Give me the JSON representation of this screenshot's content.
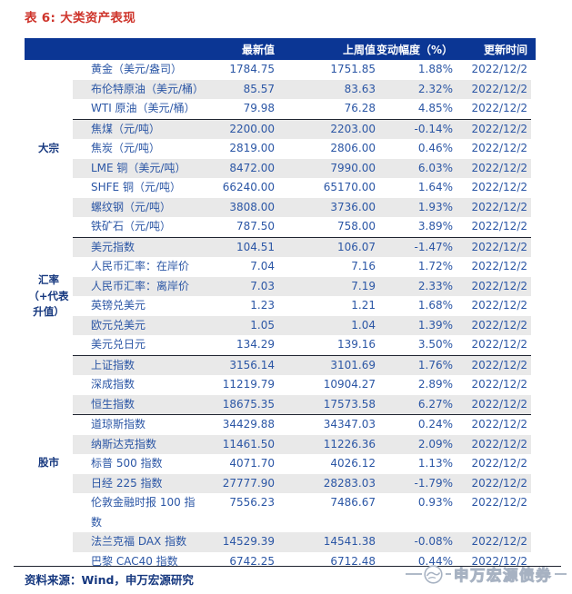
{
  "title": "表 6: 大类资产表现",
  "columns": {
    "latest": "最新值",
    "prev": "上周值",
    "change": "变动幅度（%）",
    "date": "更新时间"
  },
  "sections": [
    {
      "label": "大宗",
      "groups": [
        {
          "rows": [
            {
              "name": "黄金（美元/盎司）",
              "latest": "1784.75",
              "prev": "1751.85",
              "change": "1.88%",
              "date": "2022/12/2"
            },
            {
              "name": "布伦特原油（美元/桶）",
              "latest": "85.57",
              "prev": "83.63",
              "change": "2.32%",
              "date": "2022/12/2"
            },
            {
              "name": "WTI 原油（美元/桶）",
              "latest": "79.98",
              "prev": "76.28",
              "change": "4.85%",
              "date": "2022/12/2"
            }
          ]
        },
        {
          "rows": [
            {
              "name": "焦煤（元/吨）",
              "latest": "2200.00",
              "prev": "2203.00",
              "change": "-0.14%",
              "date": "2022/12/2"
            },
            {
              "name": "焦炭（元/吨）",
              "latest": "2819.00",
              "prev": "2806.00",
              "change": "0.46%",
              "date": "2022/12/2"
            },
            {
              "name": "LME 铜（美元/吨）",
              "latest": "8472.00",
              "prev": "7990.00",
              "change": "6.03%",
              "date": "2022/12/2"
            },
            {
              "name": "SHFE 铜（元/吨）",
              "latest": "66240.00",
              "prev": "65170.00",
              "change": "1.64%",
              "date": "2022/12/2"
            },
            {
              "name": "螺纹钢（元/吨）",
              "latest": "3808.00",
              "prev": "3736.00",
              "change": "1.93%",
              "date": "2022/12/2"
            },
            {
              "name": "铁矿石（元/吨）",
              "latest": "787.50",
              "prev": "758.00",
              "change": "3.89%",
              "date": "2022/12/2"
            }
          ]
        }
      ]
    },
    {
      "label": "汇率（+代表升值）",
      "groups": [
        {
          "rows": [
            {
              "name": "美元指数",
              "latest": "104.51",
              "prev": "106.07",
              "change": "-1.47%",
              "date": "2022/12/2"
            },
            {
              "name": "人民币汇率：在岸价",
              "latest": "7.04",
              "prev": "7.16",
              "change": "1.72%",
              "date": "2022/12/2"
            },
            {
              "name": "人民币汇率：离岸价",
              "latest": "7.03",
              "prev": "7.19",
              "change": "2.33%",
              "date": "2022/12/2"
            },
            {
              "name": "英镑兑美元",
              "latest": "1.23",
              "prev": "1.21",
              "change": "1.68%",
              "date": "2022/12/2"
            },
            {
              "name": "欧元兑美元",
              "latest": "1.05",
              "prev": "1.04",
              "change": "1.39%",
              "date": "2022/12/2"
            },
            {
              "name": "美元兑日元",
              "latest": "134.29",
              "prev": "139.16",
              "change": "3.50%",
              "date": "2022/12/2"
            }
          ]
        }
      ]
    },
    {
      "label": "股市",
      "groups": [
        {
          "rows": [
            {
              "name": "上证指数",
              "latest": "3156.14",
              "prev": "3101.69",
              "change": "1.76%",
              "date": "2022/12/2"
            },
            {
              "name": "深成指数",
              "latest": "11219.79",
              "prev": "10904.27",
              "change": "2.89%",
              "date": "2022/12/2"
            },
            {
              "name": "恒生指数",
              "latest": "18675.35",
              "prev": "17573.58",
              "change": "6.27%",
              "date": "2022/12/2"
            }
          ]
        },
        {
          "rows": [
            {
              "name": "道琼斯指数",
              "latest": "34429.88",
              "prev": "34347.03",
              "change": "0.24%",
              "date": "2022/12/2"
            },
            {
              "name": "纳斯达克指数",
              "latest": "11461.50",
              "prev": "11226.36",
              "change": "2.09%",
              "date": "2022/12/2"
            },
            {
              "name": "标普 500 指数",
              "latest": "4071.70",
              "prev": "4026.12",
              "change": "1.13%",
              "date": "2022/12/2"
            },
            {
              "name": "日经 225 指数",
              "latest": "27777.90",
              "prev": "28283.03",
              "change": "-1.79%",
              "date": "2022/12/2"
            },
            {
              "name": "伦敦金融时报 100 指数",
              "latest": "7556.23",
              "prev": "7486.67",
              "change": "0.93%",
              "date": "2022/12/2"
            },
            {
              "name": "法兰克福 DAX 指数",
              "latest": "14529.39",
              "prev": "14541.38",
              "change": "-0.08%",
              "date": "2022/12/2"
            },
            {
              "name": "巴黎 CAC40 指数",
              "latest": "6742.25",
              "prev": "6712.48",
              "change": "0.44%",
              "date": "2022/12/2"
            }
          ]
        }
      ]
    }
  ],
  "source": "资料来源：Wind，申万宏源研究",
  "watermark": {
    "text": "申万宏源债券",
    "icon": "sws-logo-circle-icon"
  },
  "colors": {
    "header_bg": "#0B3694",
    "title_red": "#CE342B",
    "data_text_blue": "#2B56A5",
    "navy_text": "#16387F",
    "stripe_gray": "#E9E9E9",
    "divider": "#1F2430",
    "watermark_gray": "#A7B2C2"
  }
}
